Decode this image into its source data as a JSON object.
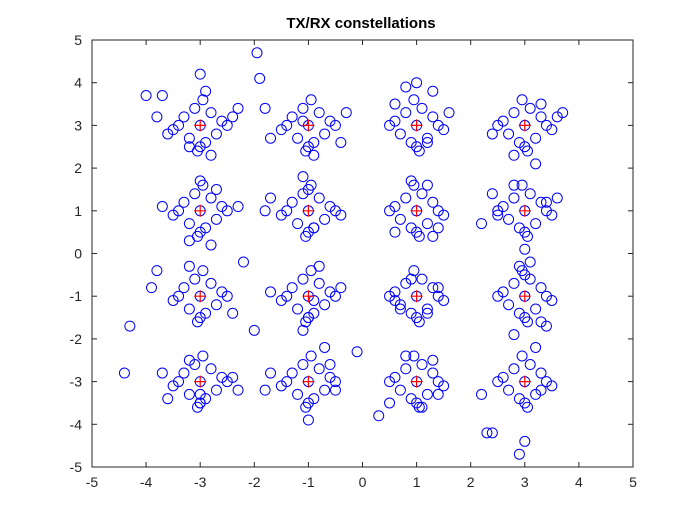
{
  "window": {
    "background": "#ffffff"
  },
  "chart_data": {
    "type": "scatter",
    "title": "TX/RX constellations",
    "xlabel": "",
    "ylabel": "",
    "xlim": [
      -5,
      5
    ],
    "ylim": [
      -5,
      5
    ],
    "xticks": [
      -5,
      -4,
      -3,
      -2,
      -1,
      0,
      1,
      2,
      3,
      4,
      5
    ],
    "yticks": [
      -5,
      -4,
      -3,
      -2,
      -1,
      0,
      1,
      2,
      3,
      4,
      5
    ],
    "grid": false,
    "legend": "none",
    "colors": {
      "rx": "#0000ff",
      "tx": "#ff0000",
      "axes": "#262626"
    },
    "series": [
      {
        "marker": "circle",
        "x": [
          -3.0,
          -3.3,
          -2.7,
          -3.1,
          -2.9,
          -3.4,
          -2.6,
          -3.2,
          -2.8,
          -3.0,
          -3.5,
          -2.5,
          -3.05,
          -2.95,
          -3.8,
          -3.7,
          -3.6,
          -2.4,
          -2.3,
          -2.9,
          -3.0,
          -2.8,
          -3.2,
          -4.0,
          -1.0,
          -1.3,
          -0.7,
          -1.1,
          -0.9,
          -1.4,
          -0.6,
          -1.2,
          -0.8,
          -1.0,
          -1.5,
          -0.5,
          -1.05,
          -0.95,
          -1.7,
          -0.3,
          -0.4,
          -1.1,
          -0.9,
          -1.9,
          -1.95,
          -1.8,
          1.0,
          1.3,
          0.7,
          1.1,
          0.9,
          1.4,
          0.6,
          1.2,
          0.8,
          1.0,
          1.5,
          0.5,
          1.05,
          0.95,
          0.8,
          1.3,
          1.6,
          0.6,
          1.0,
          1.2,
          3.0,
          3.3,
          2.7,
          3.1,
          2.9,
          3.4,
          2.6,
          3.2,
          2.8,
          3.0,
          3.5,
          2.5,
          3.05,
          2.95,
          3.6,
          3.7,
          3.2,
          2.8,
          2.4,
          3.3,
          -3.0,
          -3.3,
          -2.7,
          -3.1,
          -2.9,
          -3.4,
          -2.6,
          -3.2,
          -2.8,
          -3.0,
          -3.5,
          -2.5,
          -3.05,
          -2.95,
          -3.7,
          -2.3,
          -3.2,
          -3.0,
          -2.8,
          -2.7,
          -1.0,
          -1.3,
          -0.7,
          -1.1,
          -0.9,
          -1.4,
          -0.6,
          -1.2,
          -0.8,
          -1.0,
          -1.5,
          -0.5,
          -1.05,
          -0.95,
          -1.8,
          -1.7,
          -0.4,
          -1.0,
          -1.1,
          -0.9,
          1.0,
          1.3,
          0.7,
          1.1,
          0.9,
          1.4,
          0.6,
          1.2,
          0.8,
          1.0,
          1.5,
          0.5,
          1.05,
          0.95,
          1.3,
          1.4,
          0.6,
          2.2,
          1.2,
          0.9,
          3.0,
          3.3,
          2.7,
          3.1,
          2.9,
          3.4,
          2.6,
          3.2,
          2.8,
          3.0,
          3.5,
          2.5,
          3.05,
          2.95,
          2.4,
          2.5,
          3.4,
          3.6,
          3.0,
          2.8,
          -3.0,
          -3.3,
          -2.7,
          -3.1,
          -2.9,
          -3.4,
          -2.6,
          -3.2,
          -2.8,
          -3.0,
          -3.5,
          -2.5,
          -3.05,
          -2.95,
          -3.8,
          -3.9,
          -2.4,
          -2.2,
          -2.0,
          -3.2,
          -4.3,
          -1.0,
          -1.3,
          -0.7,
          -1.1,
          -0.9,
          -1.4,
          -0.6,
          -1.2,
          -0.8,
          -1.0,
          -1.5,
          -0.5,
          -1.05,
          -0.95,
          -1.7,
          -0.4,
          -0.9,
          -1.1,
          -0.8,
          -1.0,
          1.0,
          1.3,
          0.7,
          1.1,
          0.9,
          1.4,
          0.6,
          1.2,
          0.8,
          1.0,
          1.5,
          0.5,
          1.05,
          0.95,
          0.6,
          0.7,
          1.2,
          1.4,
          0.9,
          3.0,
          3.3,
          2.7,
          3.1,
          2.9,
          3.4,
          2.6,
          3.2,
          2.8,
          3.0,
          3.5,
          2.5,
          3.05,
          2.95,
          2.8,
          2.9,
          3.3,
          3.0,
          3.4,
          3.1,
          -3.0,
          -3.3,
          -2.7,
          -3.1,
          -2.9,
          -3.4,
          -2.6,
          -3.2,
          -2.8,
          -3.0,
          -3.5,
          -2.5,
          -3.05,
          -2.95,
          -3.6,
          -3.7,
          -2.3,
          -2.4,
          -3.2,
          -3.0,
          -4.4,
          -3.0,
          -1.0,
          -1.3,
          -0.7,
          -1.1,
          -0.9,
          -1.4,
          -0.6,
          -1.2,
          -0.8,
          -1.0,
          -1.5,
          -0.5,
          -1.05,
          -0.95,
          -1.7,
          -1.8,
          -0.6,
          -0.5,
          -1.0,
          -0.7,
          -0.1,
          1.0,
          1.3,
          0.7,
          1.1,
          0.9,
          1.4,
          0.6,
          1.2,
          0.8,
          1.0,
          1.5,
          0.5,
          1.05,
          0.95,
          0.3,
          0.5,
          1.3,
          1.4,
          0.8,
          1.1,
          3.0,
          3.3,
          2.7,
          3.1,
          2.9,
          3.4,
          2.6,
          3.2,
          2.8,
          3.0,
          3.5,
          2.5,
          3.05,
          2.95,
          2.3,
          2.4,
          3.3,
          3.2,
          2.9,
          3.0,
          2.2
        ],
        "y": [
          3.0,
          3.2,
          2.8,
          3.4,
          2.6,
          3.0,
          3.1,
          2.7,
          3.3,
          2.5,
          2.9,
          3.0,
          2.4,
          3.6,
          3.2,
          3.7,
          2.8,
          3.2,
          3.4,
          3.8,
          4.2,
          2.3,
          2.5,
          3.7,
          3.0,
          3.2,
          2.8,
          3.4,
          2.6,
          3.0,
          3.1,
          2.7,
          3.3,
          2.5,
          2.9,
          3.0,
          2.4,
          3.6,
          2.7,
          3.3,
          2.6,
          3.1,
          2.3,
          4.1,
          4.7,
          3.4,
          3.0,
          3.2,
          2.8,
          3.4,
          2.6,
          3.0,
          3.1,
          2.7,
          3.3,
          2.5,
          2.9,
          3.0,
          2.4,
          3.6,
          3.9,
          3.8,
          3.3,
          3.5,
          4.0,
          2.6,
          3.0,
          3.2,
          2.8,
          3.4,
          2.6,
          3.0,
          3.1,
          2.7,
          3.3,
          2.5,
          2.9,
          3.0,
          2.4,
          3.6,
          3.2,
          3.3,
          2.1,
          2.3,
          2.8,
          3.5,
          1.0,
          1.2,
          0.8,
          1.4,
          0.6,
          1.0,
          1.1,
          0.7,
          1.3,
          0.5,
          0.9,
          1.0,
          0.4,
          1.6,
          1.1,
          1.1,
          0.3,
          1.7,
          0.2,
          1.5,
          1.0,
          1.2,
          0.8,
          1.4,
          0.6,
          1.0,
          1.1,
          0.7,
          1.3,
          0.5,
          0.9,
          1.0,
          0.4,
          1.6,
          1.0,
          1.3,
          0.9,
          1.5,
          1.8,
          0.6,
          1.0,
          1.2,
          0.8,
          1.4,
          0.6,
          1.0,
          1.1,
          0.7,
          1.3,
          0.5,
          0.9,
          1.0,
          0.4,
          1.6,
          0.4,
          0.6,
          0.5,
          0.7,
          1.6,
          1.7,
          1.0,
          1.2,
          0.8,
          1.4,
          0.6,
          1.0,
          1.1,
          0.7,
          1.3,
          0.5,
          0.9,
          1.0,
          0.4,
          1.6,
          1.4,
          0.9,
          1.2,
          1.3,
          0.1,
          1.6,
          -1.0,
          -0.8,
          -1.2,
          -0.6,
          -1.4,
          -1.0,
          -0.9,
          -1.3,
          -0.7,
          -1.5,
          -1.1,
          -1.0,
          -1.6,
          -0.4,
          -0.4,
          -0.8,
          -1.4,
          -0.2,
          -1.8,
          -0.3,
          -1.7,
          -1.0,
          -0.8,
          -1.2,
          -0.6,
          -1.4,
          -1.0,
          -0.9,
          -1.3,
          -0.7,
          -1.5,
          -1.1,
          -1.0,
          -1.6,
          -0.4,
          -0.9,
          -0.8,
          -1.1,
          -1.8,
          -0.3,
          -1.5,
          -1.0,
          -0.8,
          -1.2,
          -0.6,
          -1.4,
          -1.0,
          -0.9,
          -1.3,
          -0.7,
          -1.5,
          -1.1,
          -1.0,
          -1.6,
          -0.4,
          -1.1,
          -1.3,
          -1.4,
          -0.8,
          -0.6,
          -1.0,
          -0.8,
          -1.2,
          -0.6,
          -1.4,
          -1.0,
          -0.9,
          -1.3,
          -0.7,
          -1.5,
          -1.1,
          -1.0,
          -1.6,
          -0.4,
          -1.9,
          -0.3,
          -1.6,
          -0.5,
          -1.7,
          -0.2,
          -3.0,
          -2.8,
          -3.2,
          -2.6,
          -3.4,
          -3.0,
          -2.9,
          -3.3,
          -2.7,
          -3.5,
          -3.1,
          -3.0,
          -3.6,
          -2.4,
          -3.4,
          -2.8,
          -3.2,
          -2.9,
          -2.5,
          -3.5,
          -2.8,
          -3.3,
          -3.0,
          -2.8,
          -3.2,
          -2.6,
          -3.4,
          -3.0,
          -2.9,
          -3.3,
          -2.7,
          -3.5,
          -3.1,
          -3.0,
          -3.6,
          -2.4,
          -2.8,
          -3.2,
          -2.6,
          -3.2,
          -3.9,
          -2.2,
          -2.3,
          -3.0,
          -2.8,
          -3.2,
          -2.6,
          -3.4,
          -3.0,
          -2.9,
          -3.3,
          -2.7,
          -3.5,
          -3.1,
          -3.0,
          -3.6,
          -2.4,
          -3.8,
          -3.5,
          -2.5,
          -3.3,
          -2.4,
          -3.6,
          -3.0,
          -2.8,
          -3.2,
          -2.6,
          -3.4,
          -3.0,
          -2.9,
          -3.3,
          -2.7,
          -3.5,
          -3.1,
          -3.0,
          -3.6,
          -2.4,
          -4.2,
          -4.2,
          -3.2,
          -2.2,
          -4.7,
          -4.4,
          -3.3
        ]
      },
      {
        "marker": "plus",
        "x": [
          -3,
          -1,
          1,
          3,
          -3,
          -1,
          1,
          3,
          -3,
          -1,
          1,
          3,
          -3,
          -1,
          1,
          3
        ],
        "y": [
          3,
          3,
          3,
          3,
          1,
          1,
          1,
          1,
          -1,
          -1,
          -1,
          -1,
          -3,
          -3,
          -3,
          -3
        ]
      }
    ]
  }
}
